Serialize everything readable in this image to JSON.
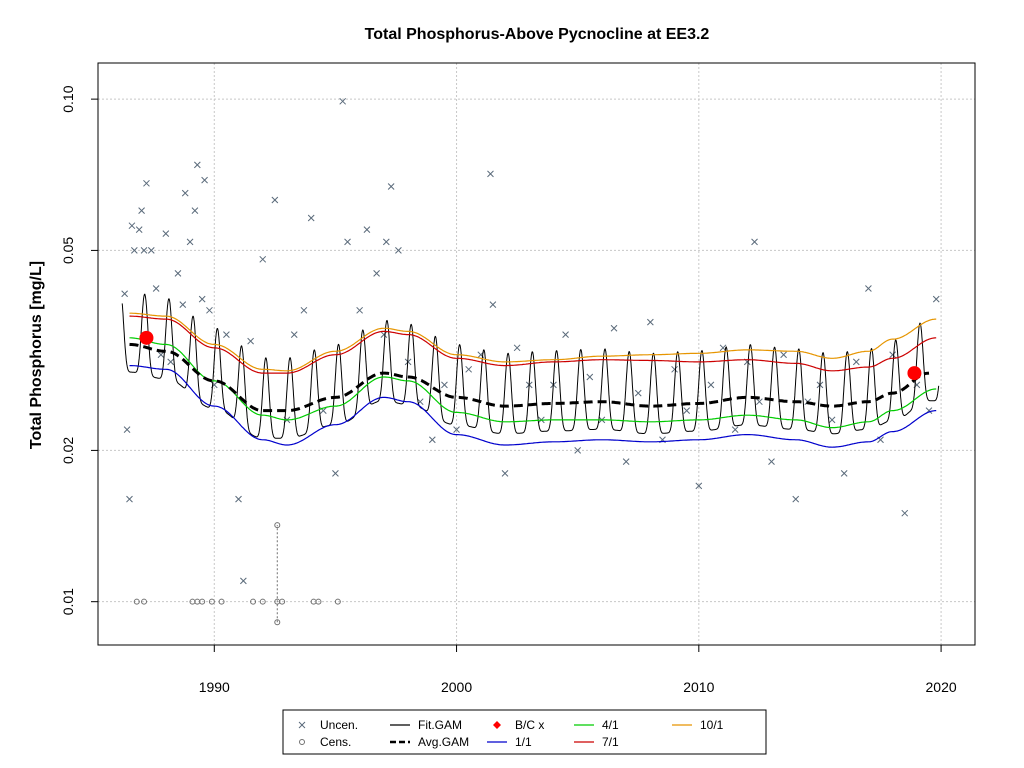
{
  "chart_data": {
    "type": "scatter",
    "title": "Total Phosphorus-Above Pycnocline at EE3.2",
    "xlabel": "",
    "ylabel": "Total Phosphorus [mg/L]",
    "y_scale": "log",
    "xlim": [
      1985.2,
      2021.4
    ],
    "ylim": [
      0.0082,
      0.118
    ],
    "x_ticks": [
      1990,
      2000,
      2010,
      2020
    ],
    "x_tick_labels": [
      "1990",
      "2000",
      "2010",
      "2020"
    ],
    "y_ticks": [
      0.01,
      0.02,
      0.05,
      0.1
    ],
    "y_tick_labels": [
      "0.01",
      "0.02",
      "0.05",
      "0.10"
    ],
    "grid": true,
    "legend": {
      "position": "bottom",
      "entries": [
        {
          "label": "Uncen.",
          "symbol": "x",
          "color": "#5a6a7a"
        },
        {
          "label": "Cens.",
          "symbol": "circle-open",
          "color": "#707070"
        },
        {
          "label": "Fit.GAM",
          "symbol": "line",
          "color": "#000000"
        },
        {
          "label": "Avg.GAM",
          "symbol": "dashed-line",
          "color": "#000000"
        },
        {
          "label": "B/C x",
          "symbol": "diamond",
          "color": "#ff0000"
        },
        {
          "label": "1/1",
          "symbol": "line",
          "color": "#0000cc"
        },
        {
          "label": "4/1",
          "symbol": "line",
          "color": "#00cc00"
        },
        {
          "label": "7/1",
          "symbol": "line",
          "color": "#cc0000"
        },
        {
          "label": "10/1",
          "symbol": "line",
          "color": "#e69500"
        }
      ]
    },
    "colors": {
      "uncensored": "#5a6a7a",
      "censored": "#707070",
      "fit_gam": "#000000",
      "avg_gam": "#000000",
      "bc": "#ff0000",
      "d1_1": "#0000cc",
      "d4_1": "#00cc00",
      "d7_1": "#cc0000",
      "d10_1": "#e69500",
      "grid": "#c8c8c8"
    },
    "series": [
      {
        "name": "Avg.GAM",
        "x": [
          1986.5,
          1988,
          1990,
          1992,
          1993,
          1995,
          1997,
          1998,
          2000,
          2002,
          2004,
          2006,
          2008,
          2010,
          2012,
          2014,
          2015.5,
          2017,
          2018,
          2019.5
        ],
        "y": [
          0.0325,
          0.0315,
          0.0275,
          0.024,
          0.024,
          0.0255,
          0.0285,
          0.028,
          0.0255,
          0.0245,
          0.0248,
          0.025,
          0.0245,
          0.0248,
          0.0255,
          0.025,
          0.0245,
          0.025,
          0.026,
          0.0285
        ]
      },
      {
        "name": "1/1",
        "x": [
          1986.5,
          1988,
          1990,
          1992,
          1993,
          1995,
          1997,
          1998,
          2000,
          2002,
          2004,
          2006,
          2008,
          2010,
          2012,
          2014,
          2015.5,
          2017,
          2018,
          2019.8
        ],
        "y": [
          0.0295,
          0.029,
          0.0245,
          0.021,
          0.0205,
          0.0225,
          0.0255,
          0.025,
          0.0215,
          0.0205,
          0.0208,
          0.021,
          0.0208,
          0.021,
          0.0215,
          0.021,
          0.0203,
          0.0208,
          0.0218,
          0.024
        ]
      },
      {
        "name": "4/1",
        "x": [
          1986.5,
          1988,
          1990,
          1992,
          1993,
          1995,
          1997,
          1998,
          2000,
          2002,
          2004,
          2006,
          2008,
          2010,
          2012,
          2014,
          2015.5,
          2017,
          2018,
          2019.8
        ],
        "y": [
          0.0335,
          0.0325,
          0.0275,
          0.0235,
          0.023,
          0.0245,
          0.028,
          0.0275,
          0.0238,
          0.0228,
          0.023,
          0.023,
          0.0228,
          0.023,
          0.0235,
          0.023,
          0.0222,
          0.0228,
          0.024,
          0.0265
        ]
      },
      {
        "name": "7/1",
        "x": [
          1986.5,
          1988,
          1990,
          1992,
          1993,
          1995,
          1997,
          1998,
          2000,
          2002,
          2004,
          2006,
          2008,
          2010,
          2012,
          2014,
          2015.5,
          2017,
          2018,
          2019.8
        ],
        "y": [
          0.037,
          0.0365,
          0.032,
          0.0285,
          0.0285,
          0.031,
          0.0345,
          0.034,
          0.0305,
          0.0295,
          0.03,
          0.0303,
          0.0302,
          0.03,
          0.0303,
          0.0298,
          0.0288,
          0.0293,
          0.0305,
          0.0335
        ]
      },
      {
        "name": "10/1",
        "x": [
          1986.5,
          1988,
          1990,
          1992,
          1993,
          1995,
          1997,
          1998,
          2000,
          2002,
          2004,
          2006,
          2008,
          2010,
          2012,
          2014,
          2015.5,
          2017,
          2018,
          2019.8
        ],
        "y": [
          0.0375,
          0.037,
          0.0325,
          0.029,
          0.0288,
          0.0315,
          0.035,
          0.0345,
          0.031,
          0.03,
          0.0303,
          0.0308,
          0.031,
          0.0312,
          0.0317,
          0.0315,
          0.0305,
          0.0315,
          0.0333,
          0.0365
        ]
      },
      {
        "name": "Fit.GAM",
        "seasonal": true,
        "start_year": 1986.2,
        "end_year": 2019.9,
        "base_series": "Avg.GAM",
        "amplitude_log": 0.2,
        "trough_offset": -0.2,
        "cycles": "annual"
      },
      {
        "name": "B/C x",
        "x": [
          1987.2,
          2018.9
        ],
        "y": [
          0.0335,
          0.0285
        ]
      },
      {
        "name": "Uncen.",
        "x": [
          1986.3,
          1986.4,
          1986.5,
          1986.7,
          1986.9,
          1987.0,
          1987.2,
          1987.4,
          1987.6,
          1987.8,
          1988.0,
          1988.2,
          1988.5,
          1988.8,
          1989.0,
          1989.2,
          1989.5,
          1989.8,
          1990.0,
          1990.5,
          1991.0,
          1991.2,
          1991.5,
          1992.0,
          1992.5,
          1993.0,
          1993.3,
          1993.7,
          1994.0,
          1994.5,
          1995.0,
          1995.5,
          1996.0,
          1996.3,
          1996.7,
          1997.0,
          1997.3,
          1997.6,
          1998.0,
          1998.5,
          1999.0,
          1999.5,
          2000.0,
          2000.5,
          2001.0,
          2001.4,
          2002.0,
          2002.5,
          2003.0,
          2003.5,
          2004.0,
          2004.5,
          2005.0,
          2005.5,
          2006.0,
          2006.5,
          2007.0,
          2007.5,
          2008.0,
          2008.5,
          2009.0,
          2009.5,
          2010.0,
          2010.5,
          2011.0,
          2011.5,
          2012.0,
          2012.5,
          2013.0,
          2013.5,
          2014.0,
          2014.5,
          2015.0,
          2015.5,
          2016.0,
          2016.5,
          2017.0,
          2017.5,
          2018.0,
          2018.5,
          2019.0,
          2019.5,
          2019.8,
          1989.3,
          1989.6,
          1988.7,
          1995.3,
          1997.1,
          2001.5,
          2012.3,
          1986.6,
          1987.1
        ],
        "y": [
          0.041,
          0.022,
          0.016,
          0.05,
          0.055,
          0.06,
          0.068,
          0.05,
          0.042,
          0.031,
          0.054,
          0.03,
          0.045,
          0.065,
          0.052,
          0.06,
          0.04,
          0.038,
          0.027,
          0.034,
          0.016,
          0.011,
          0.033,
          0.048,
          0.063,
          0.023,
          0.034,
          0.038,
          0.058,
          0.024,
          0.018,
          0.052,
          0.038,
          0.055,
          0.045,
          0.034,
          0.067,
          0.05,
          0.03,
          0.025,
          0.021,
          0.027,
          0.022,
          0.029,
          0.031,
          0.071,
          0.018,
          0.032,
          0.027,
          0.023,
          0.027,
          0.034,
          0.02,
          0.028,
          0.023,
          0.035,
          0.019,
          0.026,
          0.036,
          0.021,
          0.029,
          0.024,
          0.017,
          0.027,
          0.032,
          0.022,
          0.03,
          0.025,
          0.019,
          0.031,
          0.016,
          0.025,
          0.027,
          0.023,
          0.018,
          0.03,
          0.042,
          0.021,
          0.031,
          0.015,
          0.027,
          0.024,
          0.04,
          0.074,
          0.069,
          0.039,
          0.099,
          0.052,
          0.039,
          0.052,
          0.056,
          0.05
        ]
      },
      {
        "name": "Cens.",
        "x": [
          1986.8,
          1987.1,
          1989.1,
          1989.3,
          1989.5,
          1989.9,
          1990.3,
          1991.6,
          1992.0,
          1992.6,
          1992.8,
          1994.1,
          1994.3,
          1995.1
        ],
        "y": [
          0.01,
          0.01,
          0.01,
          0.01,
          0.01,
          0.01,
          0.01,
          0.01,
          0.01,
          0.01,
          0.01,
          0.01,
          0.01,
          0.01
        ]
      },
      {
        "name": "Cens. range",
        "x": [
          1992.6,
          1992.6
        ],
        "y": [
          0.0091,
          0.0142
        ]
      }
    ]
  }
}
